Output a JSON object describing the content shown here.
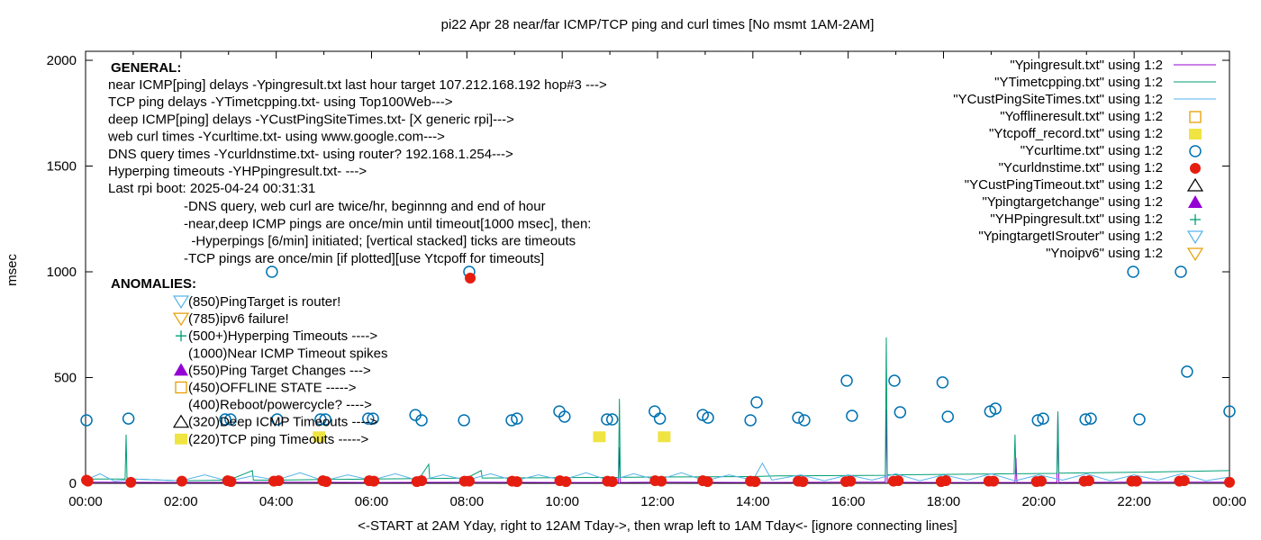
{
  "chart_data": {
    "type": "line",
    "title": "pi22 Apr 28  near/far ICMP/TCP ping and curl times [No msmt 1AM-2AM]",
    "xlabel": "<-START at 2AM Yday, right to 12AM Tday->, then wrap left to 1AM Tday<- [ignore connecting lines]",
    "ylabel": "msec",
    "xlim": [
      0,
      24
    ],
    "ylim": [
      0,
      2050
    ],
    "x_ticks": [
      "00:00",
      "02:00",
      "04:00",
      "06:00",
      "08:00",
      "10:00",
      "12:00",
      "14:00",
      "16:00",
      "18:00",
      "20:00",
      "22:00",
      "00:00"
    ],
    "y_ticks": [
      "0",
      "500",
      "1000",
      "1500",
      "2000"
    ],
    "grid": false,
    "legend_position": "top-right",
    "colors": {
      "Ypingresult": "#9400d3",
      "YTimetcpping": "#009e73",
      "YCustPingSiteTimes": "#56b4e9",
      "Yofflineresult": "#e69f00",
      "Ytcpoff_record": "#f0e442",
      "Ycurltime": "#0072b2",
      "Ycurldnstime": "#e51e10",
      "YCustPingTimeout": "#000000",
      "Ypingtargetchange": "#9400d3",
      "YHPpingresult": "#009e73",
      "YpingtargetISrouter": "#56b4e9",
      "Ynoipv6": "#e69f00"
    },
    "series": [
      {
        "name": "\"Ypingresult.txt\" using 1:2",
        "style": "line",
        "color": "#9400d3",
        "points": [
          [
            0,
            5
          ],
          [
            2,
            4
          ],
          [
            4,
            5
          ],
          [
            6,
            4
          ],
          [
            8,
            5
          ],
          [
            10,
            4
          ],
          [
            11.18,
            4
          ],
          [
            11.2,
            170
          ],
          [
            11.22,
            4
          ],
          [
            12,
            5
          ],
          [
            14,
            4
          ],
          [
            16,
            5
          ],
          [
            16.78,
            5
          ],
          [
            16.8,
            350
          ],
          [
            16.82,
            5
          ],
          [
            18,
            4
          ],
          [
            19.5,
            4
          ],
          [
            19.52,
            120
          ],
          [
            19.54,
            4
          ],
          [
            20.38,
            4
          ],
          [
            20.4,
            330
          ],
          [
            20.42,
            4
          ],
          [
            22,
            5
          ],
          [
            24,
            5
          ]
        ]
      },
      {
        "name": "\"YTimetcpping.txt\" using 1:2",
        "style": "line",
        "color": "#009e73",
        "points": [
          [
            0,
            20
          ],
          [
            0.83,
            20
          ],
          [
            0.85,
            230
          ],
          [
            0.87,
            25
          ],
          [
            1,
            20
          ],
          [
            2,
            12
          ],
          [
            3,
            15
          ],
          [
            3.5,
            60
          ],
          [
            3.52,
            15
          ],
          [
            4,
            15
          ],
          [
            5,
            18
          ],
          [
            6,
            20
          ],
          [
            7,
            22
          ],
          [
            7.2,
            90
          ],
          [
            7.22,
            22
          ],
          [
            8,
            25
          ],
          [
            8.3,
            60
          ],
          [
            8.32,
            25
          ],
          [
            10,
            27
          ],
          [
            11.18,
            28
          ],
          [
            11.2,
            400
          ],
          [
            11.22,
            28
          ],
          [
            12,
            30
          ],
          [
            14,
            32
          ],
          [
            14.5,
            35
          ],
          [
            16.78,
            38
          ],
          [
            16.8,
            690
          ],
          [
            16.82,
            40
          ],
          [
            18,
            42
          ],
          [
            19.48,
            45
          ],
          [
            19.5,
            230
          ],
          [
            19.52,
            45
          ],
          [
            20.38,
            47
          ],
          [
            20.4,
            340
          ],
          [
            20.42,
            48
          ],
          [
            22,
            52
          ],
          [
            24,
            60
          ]
        ]
      },
      {
        "name": "\"YCustPingSiteTimes.txt\" using 1:2",
        "style": "line",
        "color": "#56b4e9",
        "points": [
          [
            0,
            15
          ],
          [
            0.3,
            45
          ],
          [
            0.6,
            10
          ],
          [
            1,
            20
          ],
          [
            2,
            12
          ],
          [
            2.5,
            40
          ],
          [
            3,
            10
          ],
          [
            3.5,
            35
          ],
          [
            4,
            15
          ],
          [
            4.5,
            50
          ],
          [
            5,
            12
          ],
          [
            5.5,
            40
          ],
          [
            6,
            15
          ],
          [
            6.5,
            45
          ],
          [
            7,
            12
          ],
          [
            7.5,
            40
          ],
          [
            8,
            15
          ],
          [
            8.5,
            45
          ],
          [
            9,
            12
          ],
          [
            9.5,
            40
          ],
          [
            10,
            15
          ],
          [
            10.5,
            50
          ],
          [
            11,
            12
          ],
          [
            11.5,
            45
          ],
          [
            12,
            15
          ],
          [
            12.5,
            50
          ],
          [
            13,
            12
          ],
          [
            13.5,
            40
          ],
          [
            14,
            15
          ],
          [
            14.2,
            95
          ],
          [
            14.4,
            15
          ],
          [
            15,
            40
          ],
          [
            15.5,
            12
          ],
          [
            16,
            40
          ],
          [
            16.5,
            15
          ],
          [
            17,
            45
          ],
          [
            17.5,
            12
          ],
          [
            18,
            40
          ],
          [
            18.5,
            15
          ],
          [
            19,
            45
          ],
          [
            19.5,
            12
          ],
          [
            20,
            40
          ],
          [
            20.5,
            15
          ],
          [
            21,
            45
          ],
          [
            21.5,
            12
          ],
          [
            22,
            40
          ],
          [
            22.5,
            15
          ],
          [
            23,
            45
          ],
          [
            23.5,
            12
          ],
          [
            24,
            30
          ]
        ]
      }
    ],
    "points_series": [
      {
        "name": "\"Yofflineresult.txt\" using 1:2",
        "marker": "square-open",
        "color": "#e69f00",
        "points": []
      },
      {
        "name": "\"Ytcpoff_record.txt\" using 1:2",
        "marker": "square-filled",
        "color": "#f0e442",
        "points": [
          [
            4.9,
            220
          ],
          [
            10.78,
            220
          ],
          [
            12.14,
            220
          ]
        ]
      },
      {
        "name": "\"Ycurltime.txt\" using 1:2",
        "marker": "circle-open",
        "color": "#0072b2",
        "points": [
          [
            0.02,
            298
          ],
          [
            0.9,
            306
          ],
          [
            2.93,
            302
          ],
          [
            3.04,
            302
          ],
          [
            3.91,
            1000
          ],
          [
            4.02,
            302
          ],
          [
            4.93,
            302
          ],
          [
            5.03,
            302
          ],
          [
            5.93,
            306
          ],
          [
            6.03,
            306
          ],
          [
            6.92,
            323
          ],
          [
            7.05,
            298
          ],
          [
            7.94,
            298
          ],
          [
            8.05,
            1000
          ],
          [
            8.94,
            298
          ],
          [
            9.05,
            306
          ],
          [
            9.94,
            340
          ],
          [
            10.05,
            315
          ],
          [
            10.94,
            302
          ],
          [
            11.05,
            302
          ],
          [
            11.94,
            340
          ],
          [
            12.05,
            306
          ],
          [
            12.95,
            323
          ],
          [
            13.06,
            310
          ],
          [
            13.95,
            298
          ],
          [
            14.08,
            383
          ],
          [
            14.95,
            310
          ],
          [
            15.08,
            298
          ],
          [
            15.97,
            485
          ],
          [
            16.08,
            319
          ],
          [
            16.97,
            485
          ],
          [
            17.09,
            336
          ],
          [
            17.98,
            477
          ],
          [
            18.09,
            315
          ],
          [
            18.98,
            340
          ],
          [
            19.09,
            353
          ],
          [
            19.98,
            298
          ],
          [
            20.09,
            306
          ],
          [
            20.98,
            302
          ],
          [
            21.09,
            306
          ],
          [
            21.98,
            1000
          ],
          [
            22.11,
            302
          ],
          [
            22.98,
            1000
          ],
          [
            23.11,
            528
          ],
          [
            24,
            340
          ]
        ]
      },
      {
        "name": "\"Ycurldnstime.txt\" using 1:2",
        "marker": "circle-filled",
        "color": "#e51e10",
        "points": [
          [
            0.02,
            15
          ],
          [
            0.05,
            10
          ],
          [
            0.95,
            5
          ],
          [
            2.02,
            10
          ],
          [
            2.98,
            12
          ],
          [
            3.05,
            8
          ],
          [
            3.95,
            10
          ],
          [
            4.05,
            12
          ],
          [
            4.98,
            12
          ],
          [
            5.05,
            8
          ],
          [
            5.95,
            12
          ],
          [
            6.05,
            10
          ],
          [
            6.95,
            8
          ],
          [
            7.05,
            12
          ],
          [
            7.95,
            10
          ],
          [
            8.05,
            10
          ],
          [
            8.07,
            970
          ],
          [
            8.95,
            10
          ],
          [
            9.05,
            8
          ],
          [
            9.95,
            12
          ],
          [
            10.08,
            8
          ],
          [
            10.95,
            10
          ],
          [
            11.05,
            8
          ],
          [
            11.95,
            12
          ],
          [
            12.08,
            10
          ],
          [
            12.95,
            12
          ],
          [
            13.05,
            8
          ],
          [
            13.95,
            10
          ],
          [
            14.05,
            8
          ],
          [
            14.95,
            10
          ],
          [
            15.05,
            8
          ],
          [
            15.95,
            8
          ],
          [
            16.05,
            10
          ],
          [
            16.95,
            10
          ],
          [
            17.05,
            12
          ],
          [
            17.95,
            8
          ],
          [
            18.05,
            12
          ],
          [
            18.95,
            10
          ],
          [
            19.05,
            10
          ],
          [
            19.95,
            8
          ],
          [
            20.05,
            10
          ],
          [
            20.95,
            10
          ],
          [
            21.05,
            12
          ],
          [
            21.95,
            10
          ],
          [
            22.05,
            10
          ],
          [
            22.95,
            10
          ],
          [
            23.05,
            12
          ],
          [
            24,
            5
          ]
        ]
      },
      {
        "name": "\"YCustPingTimeout.txt\" using 1:2",
        "marker": "triangle-up-open",
        "color": "#000000",
        "points": []
      },
      {
        "name": "\"Ypingtargetchange\" using 1:2",
        "marker": "triangle-up-filled",
        "color": "#9400d3",
        "points": []
      },
      {
        "name": "\"YHPpingresult.txt\" using 1:2",
        "marker": "plus",
        "color": "#009e73",
        "points": []
      },
      {
        "name": "\"YpingtargetISrouter\" using 1:2",
        "marker": "triangle-down-open",
        "color": "#56b4e9",
        "points": []
      },
      {
        "name": "\"Ynoipv6\" using 1:2",
        "marker": "triangle-down-open",
        "color": "#e69f00",
        "points": []
      }
    ],
    "annotations": {
      "general_heading": "GENERAL:",
      "general_lines": [
        "near ICMP[ping] delays -Ypingresult.txt last hour target 107.212.168.192 hop#3 --->",
        "TCP ping delays -YTimetcpping.txt- using Top100Web--->",
        "deep ICMP[ping] delays -YCustPingSiteTimes.txt- [X generic rpi]--->",
        "web curl times -Ycurltime.txt- using www.google.com--->",
        "DNS query times -Ycurldnstime.txt- using router? 192.168.1.254--->",
        "Hyperping timeouts -YHPpingresult.txt- --->",
        "Last rpi boot: 2025-04-24 00:31:31"
      ],
      "notes": [
        "-DNS query, web curl are twice/hr, beginnng and end of hour",
        "-near,deep ICMP pings are once/min until timeout[1000 msec], then:",
        "  -Hyperpings [6/min] initiated; [vertical stacked] ticks are timeouts",
        "-TCP pings are once/min [if plotted][use Ytcpoff for timeouts]"
      ],
      "anomalies_heading": "ANOMALIES:",
      "anomalies": [
        {
          "marker": "triangle-down-open",
          "color": "#56b4e9",
          "text": "(850)PingTarget is router!"
        },
        {
          "marker": "triangle-down-open",
          "color": "#e69f00",
          "text": "(785)ipv6 failure!"
        },
        {
          "marker": "plus",
          "color": "#009e73",
          "text": "(500+)Hyperping Timeouts ---->"
        },
        {
          "marker": "none",
          "color": "",
          "text": "(1000)Near ICMP Timeout spikes"
        },
        {
          "marker": "triangle-up-filled",
          "color": "#9400d3",
          "text": "(550)Ping Target Changes --->"
        },
        {
          "marker": "square-open",
          "color": "#e69f00",
          "text": "(450)OFFLINE STATE ----->"
        },
        {
          "marker": "none",
          "color": "",
          "text": "(400)Reboot/powercycle? ---->"
        },
        {
          "marker": "triangle-up-open",
          "color": "#000000",
          "text": "(320)Deep ICMP Timeouts ---->"
        },
        {
          "marker": "square-filled",
          "color": "#f0e442",
          "text": "(220)TCP ping Timeouts ----->"
        }
      ]
    }
  }
}
